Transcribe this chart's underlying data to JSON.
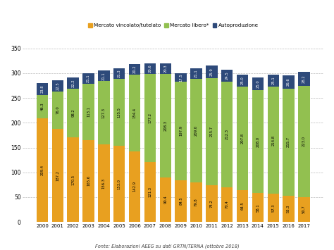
{
  "years": [
    2000,
    2001,
    2002,
    2003,
    2004,
    2005,
    2006,
    2007,
    2008,
    2009,
    2010,
    2011,
    2012,
    2013,
    2014,
    2015,
    2016,
    2017
  ],
  "mercato_vincolato": [
    209.4,
    187.2,
    170.5,
    165.6,
    156.3,
    153.0,
    142.9,
    121.3,
    90.4,
    84.5,
    79.8,
    74.2,
    70.4,
    64.5,
    58.1,
    57.3,
    53.3,
    50.7
  ],
  "mercato_libero": [
    46.3,
    76.0,
    98.2,
    113.1,
    127.3,
    135.5,
    154.4,
    177.2,
    208.3,
    197.9,
    209.0,
    215.7,
    212.3,
    207.8,
    208.0,
    214.8,
    215.7,
    223.0
  ],
  "autoproduzione": [
    23.8,
    22.5,
    22.2,
    21.1,
    21.1,
    21.3,
    20.2,
    20.6,
    20.3,
    17.5,
    21.1,
    25.9,
    24.5,
    25.0,
    25.0,
    25.1,
    26.6,
    28.2
  ],
  "color_vincolato": "#E8A020",
  "color_libero": "#92C050",
  "color_autoproduzione": "#2E4A7A",
  "legend_labels": [
    "Mercato vincolato/tutelato",
    "Mercato libero*",
    "Autoproduzione"
  ],
  "ylim": [
    0,
    350
  ],
  "yticks": [
    0,
    50,
    100,
    150,
    200,
    250,
    300,
    350
  ],
  "footnote": "Fonte: Elaborazioni AEEG su dati GRTN/TERNA (ottobre 2018)",
  "background_color": "#ffffff",
  "grid_color": "#bbbbbb",
  "bar_width": 0.75
}
